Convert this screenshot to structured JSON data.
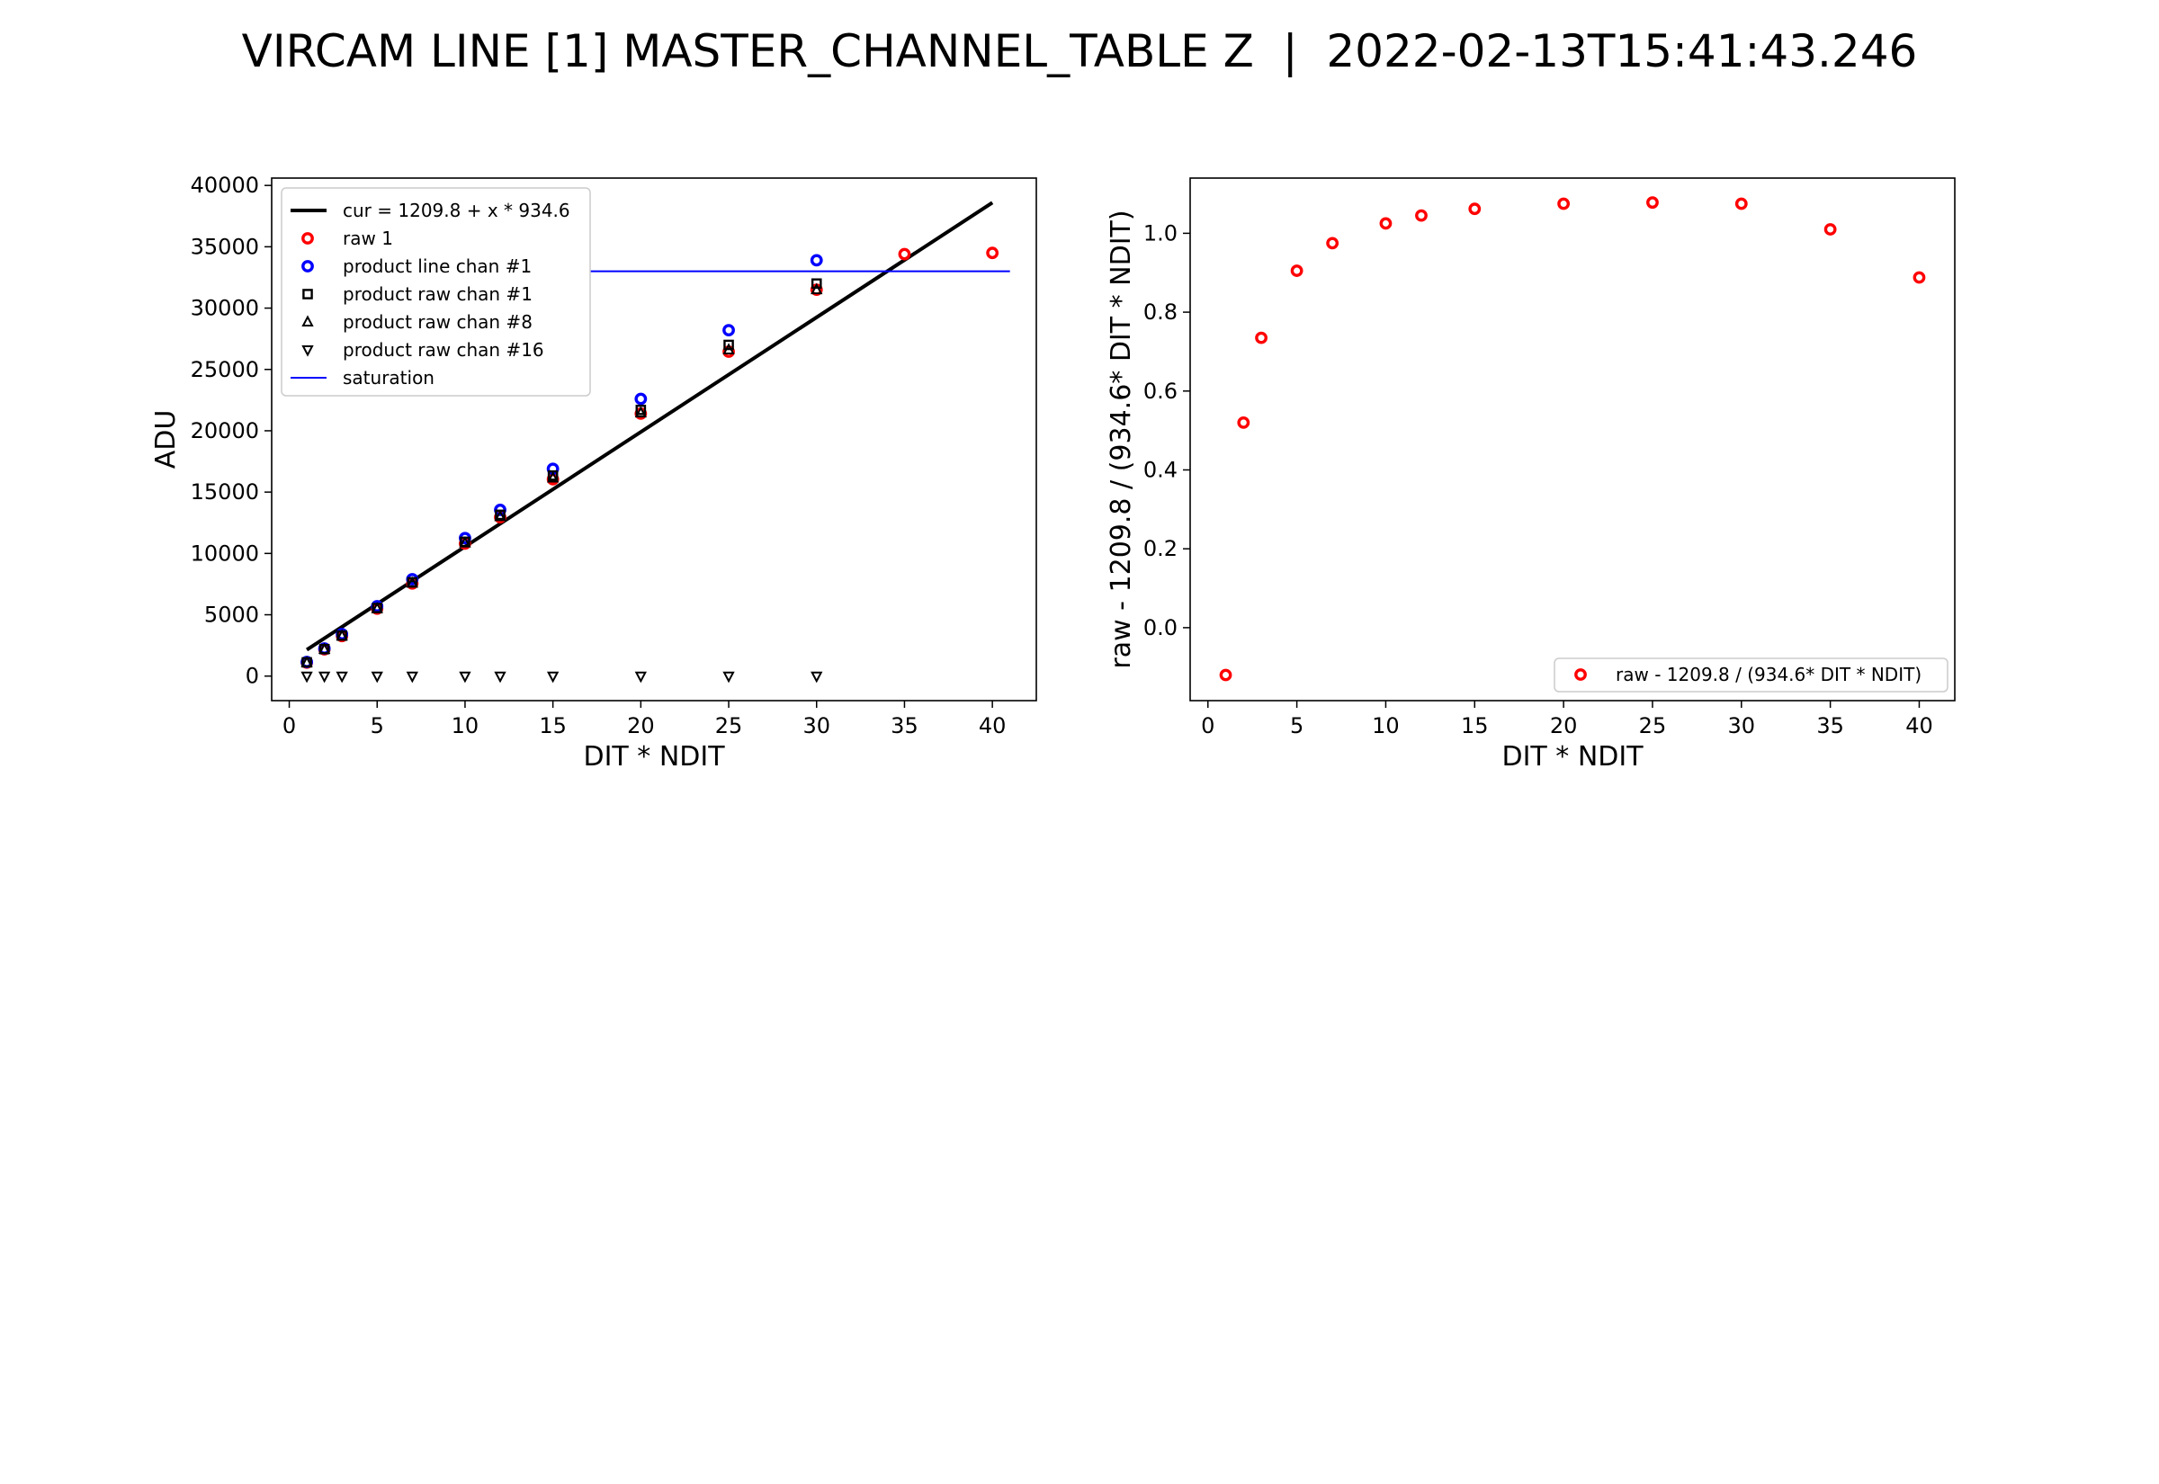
{
  "figure": {
    "title": "VIRCAM LINE [1] MASTER_CHANNEL_TABLE Z  |  2022-02-13T15:41:43.246"
  },
  "chart_data": [
    {
      "type": "scatter",
      "xlabel": "DIT * NDIT",
      "ylabel": "ADU",
      "xlim": [
        -1,
        42.5
      ],
      "ylim": [
        -2000,
        40600
      ],
      "xticks": [
        0,
        5,
        10,
        15,
        20,
        25,
        30,
        35,
        40
      ],
      "yticks": [
        0,
        5000,
        10000,
        15000,
        20000,
        25000,
        30000,
        35000,
        40000
      ],
      "legend_position": "top-left",
      "fit_line": {
        "name": "cur = 1209.8 + x * 934.6",
        "intercept": 1209.8,
        "slope": 934.6,
        "x": [
          1,
          40
        ],
        "color": "#000000"
      },
      "series": [
        {
          "name": "raw 1",
          "marker": "circle",
          "color": "#ff0000",
          "x": [
            1,
            2,
            3,
            5,
            7,
            10,
            12,
            15,
            20,
            25,
            30,
            35,
            40
          ],
          "y": [
            1100,
            2180,
            3260,
            5500,
            7550,
            10800,
            12950,
            16050,
            21400,
            26450,
            31500,
            34400,
            34500
          ]
        },
        {
          "name": "product line chan #1",
          "marker": "circle",
          "color": "#0000ff",
          "x": [
            1,
            2,
            3,
            5,
            7,
            10,
            12,
            15,
            20,
            25,
            30
          ],
          "y": [
            1150,
            2250,
            3420,
            5700,
            7900,
            11250,
            13550,
            16900,
            22600,
            28200,
            33900
          ]
        },
        {
          "name": "product raw chan #1",
          "marker": "square",
          "color": "#000000",
          "x": [
            1,
            2,
            3,
            5,
            7,
            10,
            12,
            15,
            20,
            25,
            30
          ],
          "y": [
            1120,
            2200,
            3300,
            5550,
            7650,
            10950,
            13150,
            16350,
            21700,
            27000,
            32000
          ]
        },
        {
          "name": "product raw chan #8",
          "marker": "triangle-up",
          "color": "#000000",
          "x": [
            1,
            2,
            3,
            5,
            7,
            10,
            12,
            15,
            20,
            25,
            30
          ],
          "y": [
            1100,
            2180,
            3270,
            5500,
            7580,
            10850,
            13000,
            16150,
            21450,
            26600,
            31500
          ]
        },
        {
          "name": "product raw chan #16",
          "marker": "triangle-down",
          "color": "#000000",
          "x": [
            1,
            2,
            3,
            5,
            7,
            10,
            12,
            15,
            20,
            25,
            30
          ],
          "y": [
            0,
            0,
            0,
            0,
            0,
            0,
            0,
            0,
            0,
            0,
            0
          ]
        }
      ],
      "saturation": {
        "name": "saturation",
        "y": 33000,
        "x": [
          2,
          41
        ],
        "color": "#0000ff"
      }
    },
    {
      "type": "scatter",
      "xlabel": "DIT * NDIT",
      "ylabel": "raw - 1209.8 / (934.6* DIT * NDIT)",
      "xlim": [
        -1,
        42
      ],
      "ylim": [
        -0.185,
        1.14
      ],
      "xticks": [
        0,
        5,
        10,
        15,
        20,
        25,
        30,
        35,
        40
      ],
      "yticks": [
        0.0,
        0.2,
        0.4,
        0.6,
        0.8,
        1.0
      ],
      "ytick_labels": [
        "0.0",
        "0.2",
        "0.4",
        "0.6",
        "0.8",
        "1.0"
      ],
      "legend_position": "bottom-right",
      "series": [
        {
          "name": "raw - 1209.8 / (934.6* DIT * NDIT)",
          "marker": "circle",
          "color": "#ff0000",
          "x": [
            1,
            2,
            3,
            5,
            7,
            10,
            12,
            15,
            20,
            25,
            30,
            35,
            40
          ],
          "y": [
            -0.12,
            0.52,
            0.735,
            0.905,
            0.975,
            1.025,
            1.045,
            1.062,
            1.075,
            1.078,
            1.075,
            1.01,
            0.888
          ]
        }
      ]
    }
  ]
}
